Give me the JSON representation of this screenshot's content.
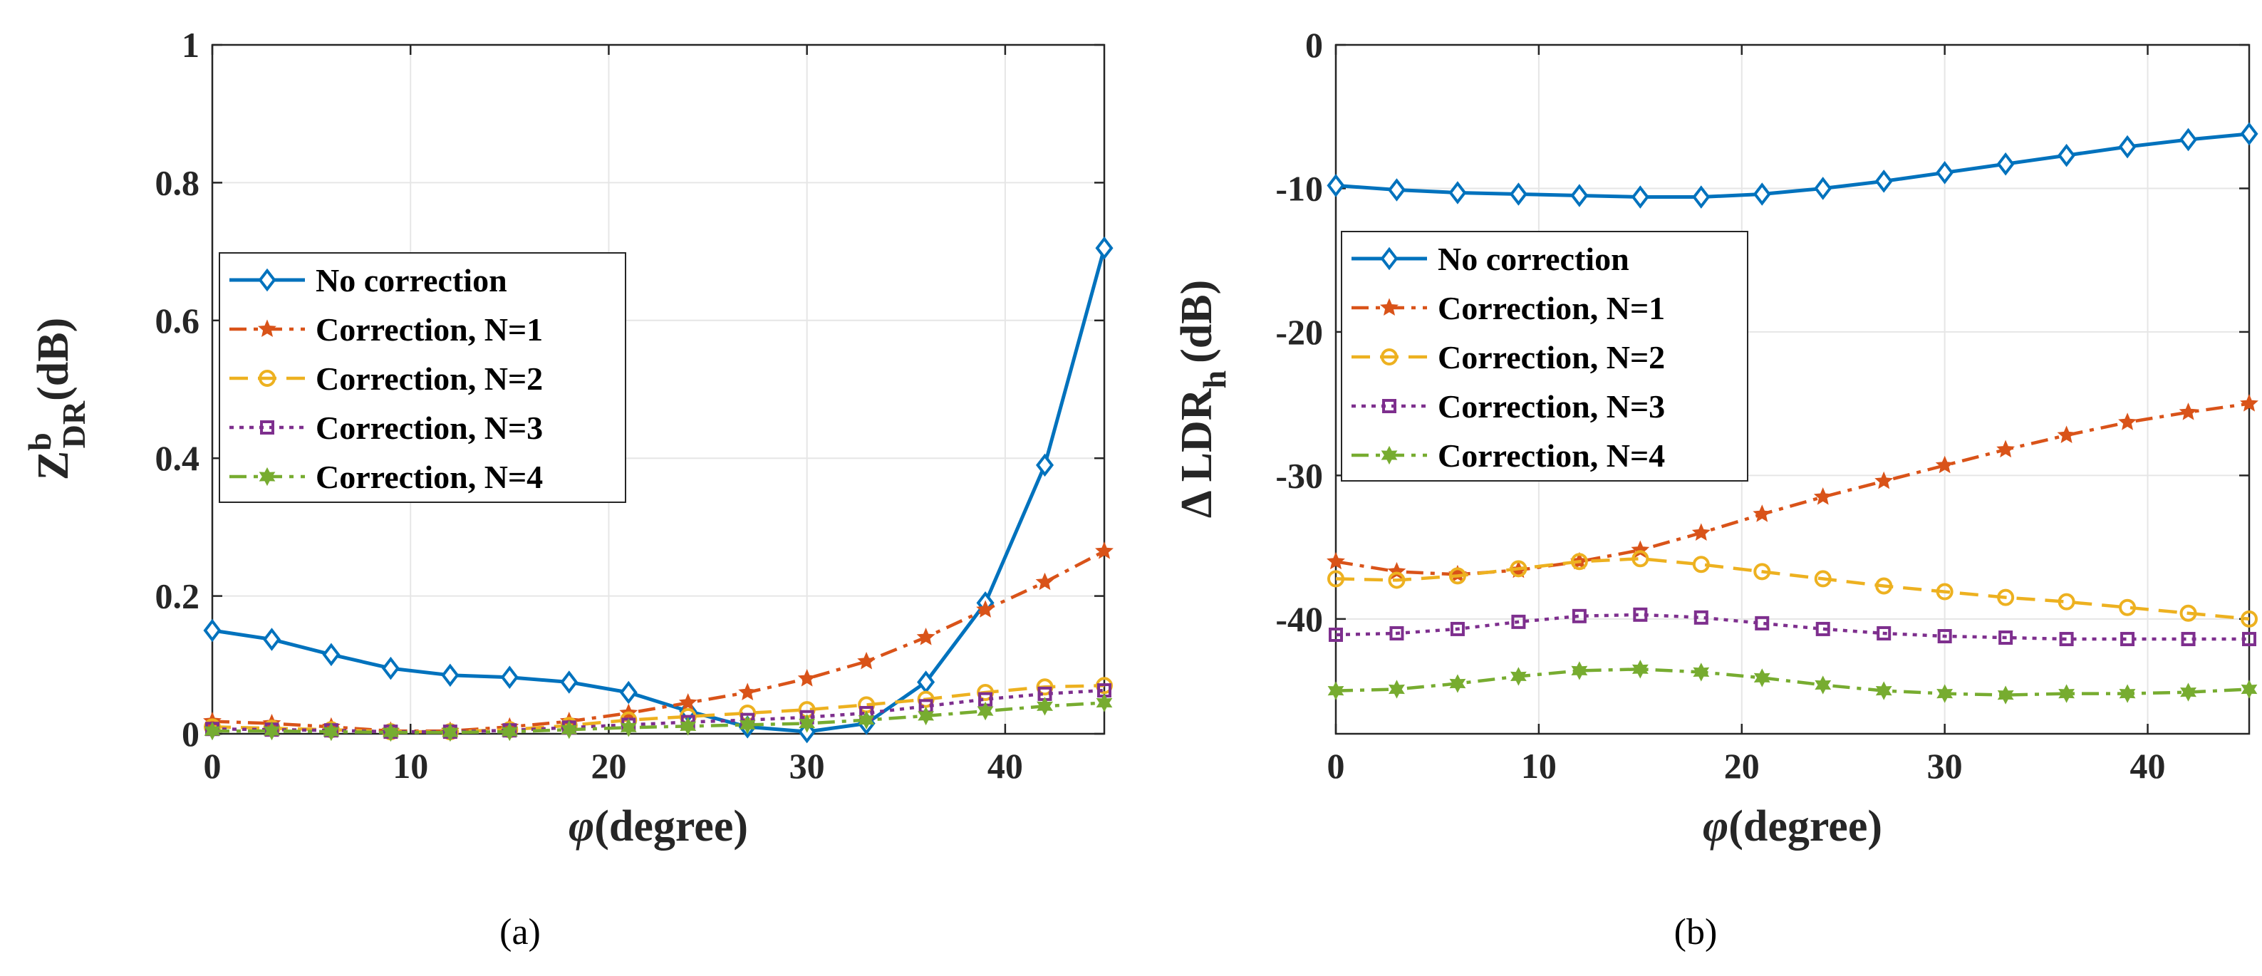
{
  "chart_data": [
    {
      "panel": "a",
      "type": "line",
      "caption": "(a)",
      "xlabel": "(degree)",
      "xsymbol": "φ",
      "ylabel_main": "Z",
      "ylabel_sup": "b",
      "ylabel_sub": "DR",
      "ylabel_unit": "(dB)",
      "xlim": [
        0,
        45
      ],
      "ylim": [
        0,
        1
      ],
      "xticks": [
        0,
        10,
        20,
        30,
        40
      ],
      "yticks": [
        0,
        0.2,
        0.4,
        0.6,
        0.8,
        1
      ],
      "ytick_labels": [
        "0",
        "0.2",
        "0.4",
        "0.6",
        "0.8",
        "1"
      ],
      "grid": true,
      "legend_position": "middle-left",
      "x": [
        0,
        3,
        6,
        9,
        12,
        15,
        18,
        21,
        24,
        27,
        30,
        33,
        36,
        39,
        42,
        45
      ],
      "series": [
        {
          "name": "No correction",
          "color": "#0072BD",
          "dash": "solid",
          "marker": "diamond",
          "values": [
            0.15,
            0.137,
            0.115,
            0.095,
            0.085,
            0.082,
            0.075,
            0.06,
            0.033,
            0.01,
            0.003,
            0.015,
            0.075,
            0.19,
            0.39,
            0.705
          ]
        },
        {
          "name": "Correction, N=1",
          "color": "#D95319",
          "dash": "dashdot",
          "marker": "star",
          "values": [
            0.018,
            0.015,
            0.01,
            0.004,
            0.004,
            0.01,
            0.018,
            0.03,
            0.045,
            0.06,
            0.08,
            0.105,
            0.14,
            0.18,
            0.22,
            0.265
          ]
        },
        {
          "name": "Correction, N=2",
          "color": "#EDB120",
          "dash": "dashed",
          "marker": "circle",
          "values": [
            0.01,
            0.008,
            0.006,
            0.003,
            0.003,
            0.006,
            0.012,
            0.02,
            0.025,
            0.03,
            0.035,
            0.042,
            0.05,
            0.06,
            0.068,
            0.07
          ]
        },
        {
          "name": "Correction, N=3",
          "color": "#7E2F8E",
          "dash": "dotted",
          "marker": "square",
          "values": [
            0.007,
            0.006,
            0.005,
            0.003,
            0.003,
            0.005,
            0.009,
            0.013,
            0.017,
            0.02,
            0.024,
            0.03,
            0.04,
            0.05,
            0.058,
            0.063
          ]
        },
        {
          "name": "Correction, N=4",
          "color": "#77AC30",
          "dash": "dashdot",
          "marker": "hexagram",
          "values": [
            0.004,
            0.004,
            0.003,
            0.002,
            0.002,
            0.003,
            0.006,
            0.009,
            0.011,
            0.013,
            0.015,
            0.02,
            0.026,
            0.033,
            0.04,
            0.045
          ]
        }
      ]
    },
    {
      "panel": "b",
      "type": "line",
      "caption": "(b)",
      "xlabel": "(degree)",
      "xsymbol": "φ",
      "ylabel_main": "Δ LDR",
      "ylabel_sub": "h",
      "ylabel_unit": "(dB)",
      "xlim": [
        0,
        45
      ],
      "ylim": [
        -48,
        0
      ],
      "xticks": [
        0,
        10,
        20,
        30,
        40
      ],
      "yticks": [
        0,
        -10,
        -20,
        -30,
        -40
      ],
      "ytick_labels": [
        "0",
        "-10",
        "-20",
        "-30",
        "-40"
      ],
      "grid": true,
      "legend_position": "middle-left",
      "x": [
        0,
        3,
        6,
        9,
        12,
        15,
        18,
        21,
        24,
        27,
        30,
        33,
        36,
        39,
        42,
        45
      ],
      "series": [
        {
          "name": "No correction",
          "color": "#0072BD",
          "dash": "solid",
          "marker": "diamond",
          "values": [
            -9.8,
            -10.1,
            -10.3,
            -10.4,
            -10.5,
            -10.6,
            -10.6,
            -10.4,
            -10.0,
            -9.5,
            -8.9,
            -8.3,
            -7.7,
            -7.1,
            -6.6,
            -6.2
          ]
        },
        {
          "name": "Correction, N=1",
          "color": "#D95319",
          "dash": "dashdot",
          "marker": "star",
          "values": [
            -36.0,
            -36.7,
            -36.9,
            -36.6,
            -36.0,
            -35.2,
            -34.0,
            -32.7,
            -31.5,
            -30.4,
            -29.3,
            -28.2,
            -27.2,
            -26.3,
            -25.6,
            -25.0
          ]
        },
        {
          "name": "Correction, N=2",
          "color": "#EDB120",
          "dash": "dashed",
          "marker": "circle",
          "values": [
            -37.2,
            -37.3,
            -37.0,
            -36.5,
            -36.0,
            -35.8,
            -36.2,
            -36.7,
            -37.2,
            -37.7,
            -38.1,
            -38.5,
            -38.8,
            -39.2,
            -39.6,
            -40.0
          ]
        },
        {
          "name": "Correction, N=3",
          "color": "#7E2F8E",
          "dash": "dotted",
          "marker": "square",
          "values": [
            -41.1,
            -41.0,
            -40.7,
            -40.2,
            -39.8,
            -39.7,
            -39.9,
            -40.3,
            -40.7,
            -41.0,
            -41.2,
            -41.3,
            -41.4,
            -41.4,
            -41.4,
            -41.4
          ]
        },
        {
          "name": "Correction, N=4",
          "color": "#77AC30",
          "dash": "dashdot",
          "marker": "hexagram",
          "values": [
            -45.0,
            -44.9,
            -44.5,
            -44.0,
            -43.6,
            -43.5,
            -43.7,
            -44.1,
            -44.6,
            -45.0,
            -45.2,
            -45.3,
            -45.2,
            -45.2,
            -45.1,
            -44.9
          ]
        }
      ]
    }
  ]
}
